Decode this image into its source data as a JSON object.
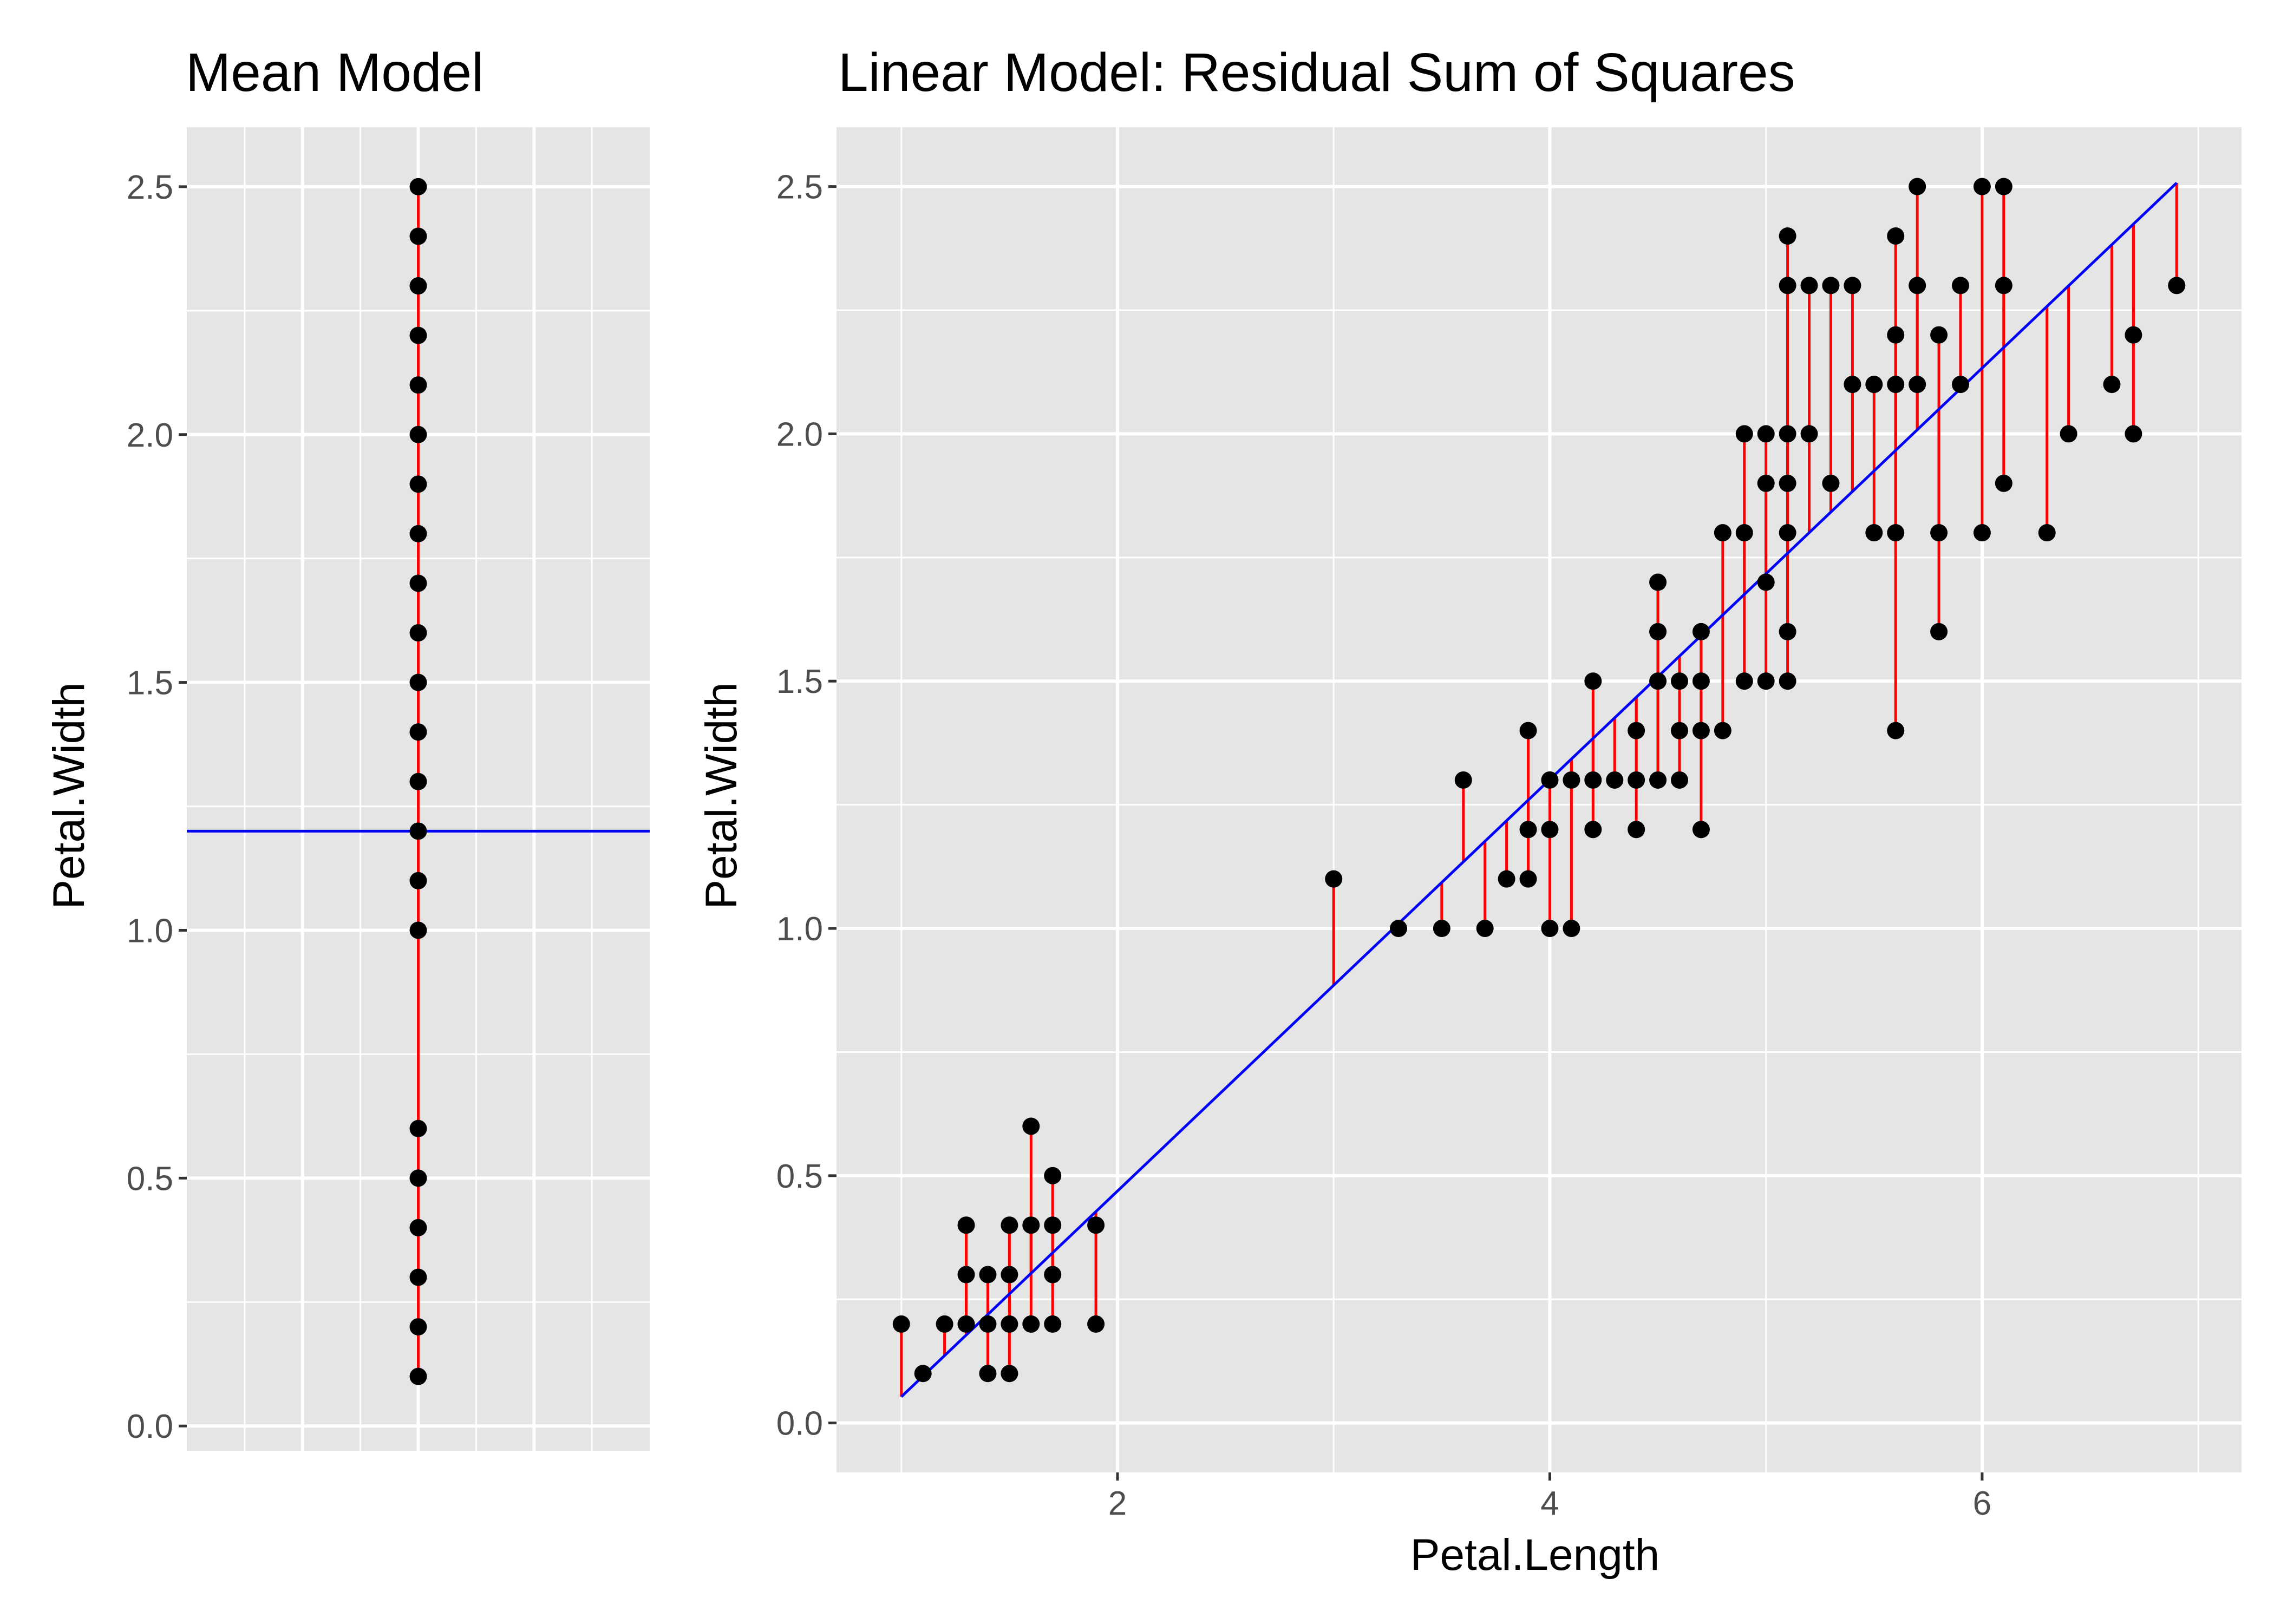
{
  "colors": {
    "panel_background": "#e5e5e5",
    "grid": "#ffffff",
    "points": "#000000",
    "residuals": "#ff0000",
    "fit_line": "#0000ff",
    "tick_text": "#4d4d4d",
    "tick_mark": "#333333"
  },
  "chart_data": [
    {
      "type": "scatter",
      "title": "Mean Model",
      "xlabel": "",
      "ylabel": "Petal.Width",
      "ylim": [
        -0.05,
        2.62
      ],
      "x_ticks_shown": false,
      "y_ticks": [
        "0.0",
        "0.5",
        "1.0",
        "1.5",
        "2.0",
        "2.5"
      ],
      "grid": true,
      "fit": {
        "kind": "horizontal",
        "label": "mean",
        "y": 1.2
      },
      "points_y": [
        0.1,
        0.2,
        0.3,
        0.4,
        0.5,
        0.6,
        1.0,
        1.1,
        1.2,
        1.3,
        1.4,
        1.5,
        1.6,
        1.7,
        1.8,
        1.9,
        2.0,
        2.1,
        2.2,
        2.3,
        2.4,
        2.5
      ]
    },
    {
      "type": "scatter",
      "title": "Linear Model: Residual Sum of Squares",
      "xlabel": "Petal.Length",
      "ylabel": "Petal.Width",
      "xlim": [
        0.7,
        7.2
      ],
      "ylim": [
        -0.1,
        2.62
      ],
      "x_ticks": [
        "2",
        "4",
        "6"
      ],
      "y_ticks": [
        "0.0",
        "0.5",
        "1.0",
        "1.5",
        "2.0",
        "2.5"
      ],
      "grid": true,
      "fit": {
        "kind": "line",
        "intercept": -0.363,
        "slope": 0.416
      },
      "points": [
        [
          1.0,
          0.2
        ],
        [
          1.1,
          0.1
        ],
        [
          1.2,
          0.2
        ],
        [
          1.3,
          0.2
        ],
        [
          1.3,
          0.3
        ],
        [
          1.3,
          0.4
        ],
        [
          1.4,
          0.1
        ],
        [
          1.4,
          0.2
        ],
        [
          1.4,
          0.3
        ],
        [
          1.5,
          0.1
        ],
        [
          1.5,
          0.2
        ],
        [
          1.5,
          0.3
        ],
        [
          1.5,
          0.4
        ],
        [
          1.6,
          0.2
        ],
        [
          1.6,
          0.4
        ],
        [
          1.6,
          0.6
        ],
        [
          1.7,
          0.2
        ],
        [
          1.7,
          0.3
        ],
        [
          1.7,
          0.4
        ],
        [
          1.7,
          0.5
        ],
        [
          1.9,
          0.2
        ],
        [
          1.9,
          0.4
        ],
        [
          3.0,
          1.1
        ],
        [
          3.3,
          1.0
        ],
        [
          3.5,
          1.0
        ],
        [
          3.6,
          1.3
        ],
        [
          3.7,
          1.0
        ],
        [
          3.8,
          1.1
        ],
        [
          3.9,
          1.1
        ],
        [
          3.9,
          1.2
        ],
        [
          3.9,
          1.4
        ],
        [
          4.0,
          1.0
        ],
        [
          4.0,
          1.2
        ],
        [
          4.0,
          1.3
        ],
        [
          4.1,
          1.0
        ],
        [
          4.1,
          1.3
        ],
        [
          4.2,
          1.2
        ],
        [
          4.2,
          1.3
        ],
        [
          4.2,
          1.5
        ],
        [
          4.3,
          1.3
        ],
        [
          4.4,
          1.2
        ],
        [
          4.4,
          1.3
        ],
        [
          4.4,
          1.4
        ],
        [
          4.5,
          1.3
        ],
        [
          4.5,
          1.5
        ],
        [
          4.5,
          1.6
        ],
        [
          4.5,
          1.7
        ],
        [
          4.6,
          1.3
        ],
        [
          4.6,
          1.4
        ],
        [
          4.6,
          1.5
        ],
        [
          4.7,
          1.2
        ],
        [
          4.7,
          1.4
        ],
        [
          4.7,
          1.5
        ],
        [
          4.7,
          1.6
        ],
        [
          4.8,
          1.4
        ],
        [
          4.8,
          1.8
        ],
        [
          4.9,
          1.5
        ],
        [
          4.9,
          1.8
        ],
        [
          4.9,
          2.0
        ],
        [
          5.0,
          1.5
        ],
        [
          5.0,
          1.7
        ],
        [
          5.0,
          1.9
        ],
        [
          5.0,
          2.0
        ],
        [
          5.1,
          1.5
        ],
        [
          5.1,
          1.6
        ],
        [
          5.1,
          1.8
        ],
        [
          5.1,
          1.9
        ],
        [
          5.1,
          2.0
        ],
        [
          5.1,
          2.3
        ],
        [
          5.1,
          2.4
        ],
        [
          5.2,
          2.0
        ],
        [
          5.2,
          2.3
        ],
        [
          5.3,
          1.9
        ],
        [
          5.3,
          2.3
        ],
        [
          5.4,
          2.1
        ],
        [
          5.4,
          2.3
        ],
        [
          5.5,
          1.8
        ],
        [
          5.5,
          2.1
        ],
        [
          5.6,
          1.4
        ],
        [
          5.6,
          1.8
        ],
        [
          5.6,
          2.1
        ],
        [
          5.6,
          2.2
        ],
        [
          5.6,
          2.4
        ],
        [
          5.7,
          2.1
        ],
        [
          5.7,
          2.3
        ],
        [
          5.7,
          2.5
        ],
        [
          5.8,
          1.6
        ],
        [
          5.8,
          1.8
        ],
        [
          5.8,
          2.2
        ],
        [
          5.9,
          2.1
        ],
        [
          5.9,
          2.3
        ],
        [
          6.0,
          1.8
        ],
        [
          6.0,
          2.5
        ],
        [
          6.1,
          1.9
        ],
        [
          6.1,
          2.3
        ],
        [
          6.1,
          2.5
        ],
        [
          6.3,
          1.8
        ],
        [
          6.4,
          2.0
        ],
        [
          6.6,
          2.1
        ],
        [
          6.7,
          2.0
        ],
        [
          6.7,
          2.2
        ],
        [
          6.9,
          2.3
        ]
      ]
    }
  ]
}
